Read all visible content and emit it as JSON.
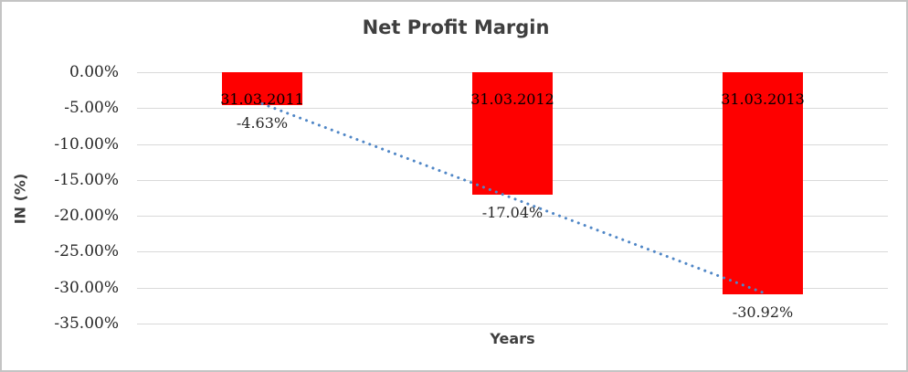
{
  "chart_data": {
    "type": "bar",
    "title": "Net Profit Margin",
    "xlabel": "Years",
    "ylabel": "IN (%)",
    "categories": [
      "31.03.2011",
      "31.03.2012",
      "31.03.2013"
    ],
    "series": [
      {
        "name": "Net Profit Margin",
        "values": [
          -4.63,
          -17.04,
          -30.92
        ]
      }
    ],
    "data_labels": [
      "-4.63%",
      "-17.04%",
      "-30.92%"
    ],
    "y_ticks": [
      "0.00%",
      "-5.00%",
      "-10.00%",
      "-15.00%",
      "-20.00%",
      "-25.00%",
      "-30.00%",
      "-35.00%"
    ],
    "ylim": [
      -35,
      0
    ],
    "grid": true,
    "legend": "none",
    "bar_color": "#fe0000",
    "gridline_color": "#d9d9d9",
    "trendline": {
      "type": "linear",
      "style": "dotted",
      "color": "#4f86c6"
    }
  }
}
